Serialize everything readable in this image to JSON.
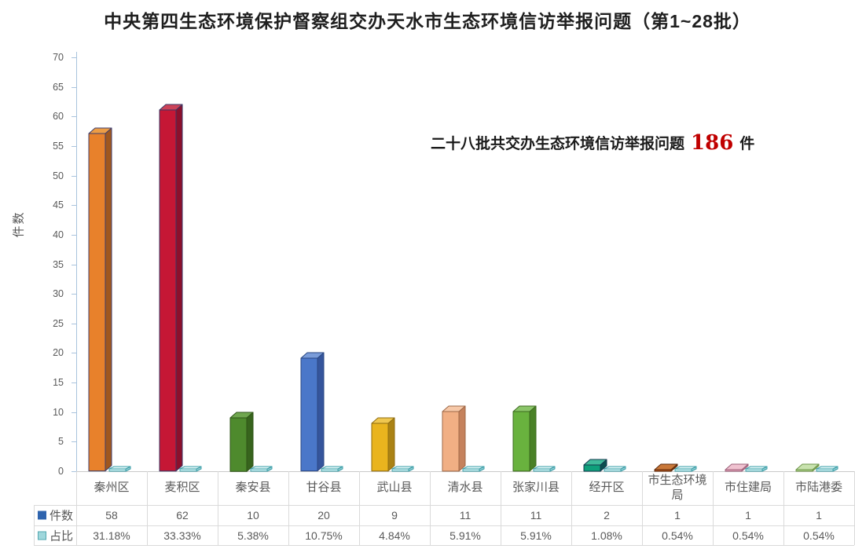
{
  "title": "中央第四生态环境保护督察组交办天水市生态环境信访举报问题（第1~28批）",
  "annotation": {
    "prefix": "二十八批共交办生态环境信访举报问题",
    "number": "186",
    "suffix": "件",
    "number_color": "#c00000"
  },
  "ylabel": "件数",
  "chart_data": {
    "type": "bar",
    "categories": [
      "秦州区",
      "麦积区",
      "秦安县",
      "甘谷县",
      "武山县",
      "清水县",
      "张家川县",
      "经开区",
      "市生态环境局",
      "市住建局",
      "市陆港委"
    ],
    "series": [
      {
        "name": "件数",
        "values": [
          58,
          62,
          10,
          20,
          9,
          11,
          11,
          2,
          1,
          1,
          1
        ],
        "swatch": "#2e64ae"
      },
      {
        "name": "占比",
        "values": [
          31.18,
          33.33,
          5.38,
          10.75,
          4.84,
          5.91,
          5.91,
          1.08,
          0.54,
          0.54,
          0.54
        ],
        "format": "percent",
        "swatch": "#9fd7dc",
        "swatch_border": "#53a8b0"
      }
    ],
    "title": "中央第四生态环境保护督察组交办天水市生态环境信访举报问题（第1~28批）",
    "xlabel": "",
    "ylabel": "件数",
    "ylim": [
      0,
      70
    ],
    "ytick_step": 5,
    "grid": false,
    "legend_position": "table-left",
    "total_label": "二十八批共交办生态环境信访举报问题 186 件",
    "bar_colors": [
      {
        "front": "#e8812b",
        "top": "#ed9d45",
        "side": "#a0571e",
        "edge": "#403e6b"
      },
      {
        "front": "#c51735",
        "top": "#cc4258",
        "side": "#8c102c",
        "edge": "#3a3765"
      },
      {
        "front": "#4e8a2d",
        "top": "#6fa64e",
        "side": "#37641d",
        "edge": "#2f5418"
      },
      {
        "front": "#4a77c9",
        "top": "#7a9cd9",
        "side": "#35559c",
        "edge": "#2a4782"
      },
      {
        "front": "#e9b41e",
        "top": "#efc750",
        "side": "#aa8214",
        "edge": "#8f6c10"
      },
      {
        "front": "#f1af84",
        "top": "#f6c8a8",
        "side": "#c5825d",
        "edge": "#9e6847"
      },
      {
        "front": "#69b23e",
        "top": "#8bc569",
        "side": "#4a8127",
        "edge": "#3c6a1f"
      },
      {
        "front": "#0fa07b",
        "top": "#3fba9a",
        "side": "#0b4f50",
        "edge": "#133a4e"
      },
      {
        "front": "#b5531b",
        "top": "#c97839",
        "side": "#7c3910",
        "edge": "#5e2b0c"
      },
      {
        "front": "#e7a6bb",
        "top": "#f0c2d0",
        "side": "#bf7d95",
        "edge": "#9c607a"
      },
      {
        "front": "#b1d58e",
        "top": "#c8e2ae",
        "side": "#88b163",
        "edge": "#6e9549"
      }
    ],
    "pct_bar_color": {
      "front": "#c9ecef",
      "top": "#ddf4f6",
      "side": "#8fcdd3",
      "edge": "#3e9fa8"
    }
  }
}
